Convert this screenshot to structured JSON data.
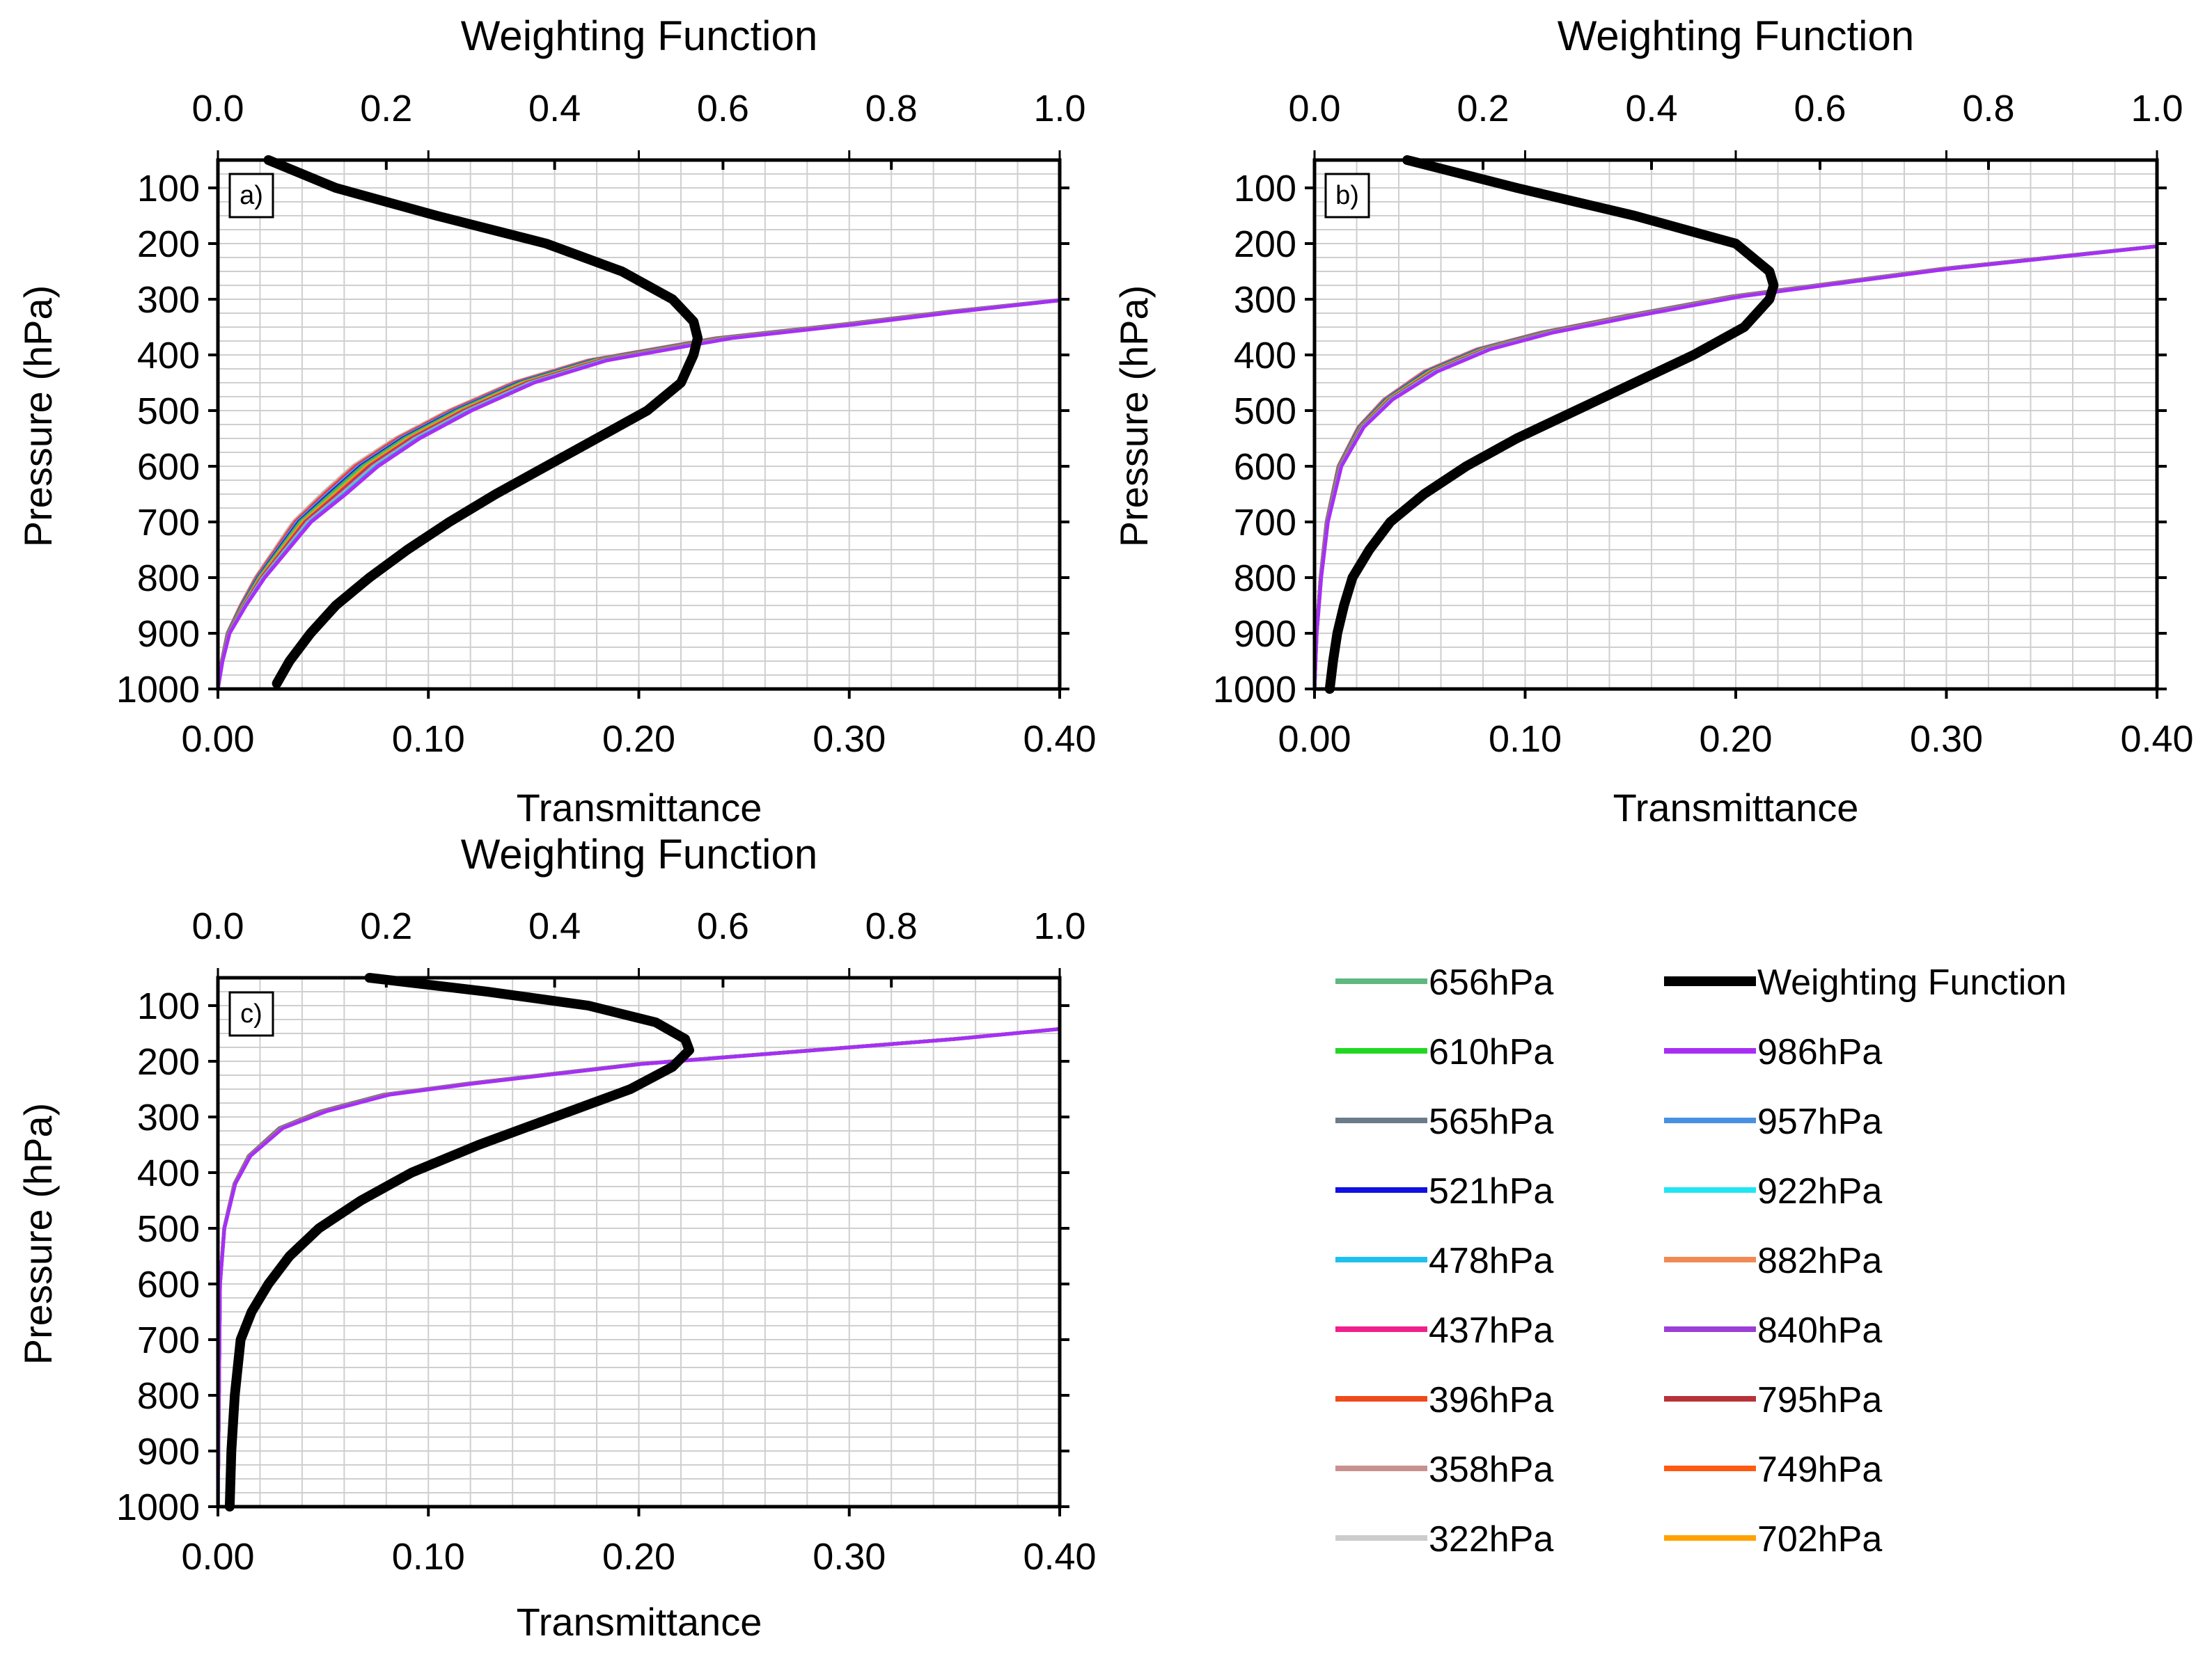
{
  "chart_data": [
    {
      "type": "line",
      "panel_label": "a)",
      "title": "Weighting Function",
      "xlabel": "Transmittance",
      "ylabel": "Pressure (hPa)",
      "xlim": [
        0,
        0.4
      ],
      "x_ticks": [
        "0.00",
        "0.10",
        "0.20",
        "0.30",
        "0.40"
      ],
      "top_xlim": [
        0,
        1.0
      ],
      "top_ticks": [
        "0.0",
        "0.2",
        "0.4",
        "0.6",
        "0.8",
        "1.0"
      ],
      "ylim": [
        50,
        1000
      ],
      "y_ticks": [
        "100",
        "200",
        "300",
        "400",
        "500",
        "600",
        "700",
        "800",
        "900",
        "1000"
      ],
      "grid": true,
      "transmittance_reference": [
        [
          0.0,
          1000
        ],
        [
          0.002,
          950
        ],
        [
          0.005,
          900
        ],
        [
          0.012,
          850
        ],
        [
          0.02,
          800
        ],
        [
          0.03,
          750
        ],
        [
          0.04,
          700
        ],
        [
          0.055,
          650
        ],
        [
          0.07,
          600
        ],
        [
          0.09,
          550
        ],
        [
          0.115,
          500
        ],
        [
          0.145,
          450
        ],
        [
          0.18,
          410
        ],
        [
          0.24,
          370
        ],
        [
          0.3,
          345
        ],
        [
          0.35,
          322
        ],
        [
          0.4,
          302
        ]
      ],
      "transmittance_spread": 0.014,
      "weighting_function": [
        [
          0.06,
          50
        ],
        [
          0.14,
          100
        ],
        [
          0.26,
          150
        ],
        [
          0.39,
          200
        ],
        [
          0.48,
          250
        ],
        [
          0.54,
          300
        ],
        [
          0.565,
          340
        ],
        [
          0.57,
          370
        ],
        [
          0.565,
          400
        ],
        [
          0.55,
          450
        ],
        [
          0.51,
          500
        ],
        [
          0.45,
          550
        ],
        [
          0.39,
          600
        ],
        [
          0.33,
          650
        ],
        [
          0.275,
          700
        ],
        [
          0.225,
          750
        ],
        [
          0.18,
          800
        ],
        [
          0.14,
          850
        ],
        [
          0.11,
          900
        ],
        [
          0.085,
          950
        ],
        [
          0.07,
          990
        ]
      ]
    },
    {
      "type": "line",
      "panel_label": "b)",
      "title": "Weighting Function",
      "xlabel": "Transmittance",
      "ylabel": "Pressure (hPa)",
      "xlim": [
        0,
        0.4
      ],
      "x_ticks": [
        "0.00",
        "0.10",
        "0.20",
        "0.30",
        "0.40"
      ],
      "top_xlim": [
        0,
        1.0
      ],
      "top_ticks": [
        "0.0",
        "0.2",
        "0.4",
        "0.6",
        "0.8",
        "1.0"
      ],
      "ylim": [
        50,
        1000
      ],
      "y_ticks": [
        "100",
        "200",
        "300",
        "400",
        "500",
        "600",
        "700",
        "800",
        "900",
        "1000"
      ],
      "grid": true,
      "transmittance_reference": [
        [
          0.0,
          1000
        ],
        [
          0.001,
          900
        ],
        [
          0.003,
          800
        ],
        [
          0.006,
          700
        ],
        [
          0.012,
          600
        ],
        [
          0.022,
          530
        ],
        [
          0.035,
          480
        ],
        [
          0.055,
          430
        ],
        [
          0.08,
          390
        ],
        [
          0.11,
          360
        ],
        [
          0.15,
          330
        ],
        [
          0.2,
          295
        ],
        [
          0.25,
          270
        ],
        [
          0.3,
          245
        ],
        [
          0.35,
          225
        ],
        [
          0.4,
          205
        ]
      ],
      "transmittance_spread": 0.008,
      "weighting_function": [
        [
          0.11,
          50
        ],
        [
          0.24,
          100
        ],
        [
          0.38,
          150
        ],
        [
          0.5,
          200
        ],
        [
          0.54,
          250
        ],
        [
          0.545,
          275
        ],
        [
          0.54,
          300
        ],
        [
          0.51,
          350
        ],
        [
          0.45,
          400
        ],
        [
          0.38,
          450
        ],
        [
          0.31,
          500
        ],
        [
          0.24,
          550
        ],
        [
          0.18,
          600
        ],
        [
          0.13,
          650
        ],
        [
          0.09,
          700
        ],
        [
          0.065,
          750
        ],
        [
          0.045,
          800
        ],
        [
          0.035,
          850
        ],
        [
          0.027,
          900
        ],
        [
          0.022,
          950
        ],
        [
          0.018,
          1000
        ]
      ]
    },
    {
      "type": "line",
      "panel_label": "c)",
      "title": "Weighting Function",
      "xlabel": "Transmittance",
      "ylabel": "Pressure (hPa)",
      "xlim": [
        0,
        0.4
      ],
      "x_ticks": [
        "0.00",
        "0.10",
        "0.20",
        "0.30",
        "0.40"
      ],
      "top_xlim": [
        0,
        1.0
      ],
      "top_ticks": [
        "0.0",
        "0.2",
        "0.4",
        "0.6",
        "0.8",
        "1.0"
      ],
      "ylim": [
        50,
        1000
      ],
      "y_ticks": [
        "100",
        "200",
        "300",
        "400",
        "500",
        "600",
        "700",
        "800",
        "900",
        "1000"
      ],
      "grid": true,
      "transmittance_reference": [
        [
          0.0,
          1000
        ],
        [
          0.0005,
          800
        ],
        [
          0.001,
          600
        ],
        [
          0.003,
          500
        ],
        [
          0.008,
          420
        ],
        [
          0.015,
          370
        ],
        [
          0.03,
          320
        ],
        [
          0.05,
          290
        ],
        [
          0.08,
          260
        ],
        [
          0.12,
          240
        ],
        [
          0.2,
          205
        ],
        [
          0.25,
          190
        ],
        [
          0.3,
          175
        ],
        [
          0.35,
          160
        ],
        [
          0.4,
          142
        ]
      ],
      "transmittance_spread": 0.004,
      "weighting_function": [
        [
          0.18,
          50
        ],
        [
          0.32,
          75
        ],
        [
          0.44,
          100
        ],
        [
          0.52,
          130
        ],
        [
          0.555,
          160
        ],
        [
          0.56,
          180
        ],
        [
          0.54,
          210
        ],
        [
          0.49,
          250
        ],
        [
          0.4,
          300
        ],
        [
          0.31,
          350
        ],
        [
          0.23,
          400
        ],
        [
          0.17,
          450
        ],
        [
          0.12,
          500
        ],
        [
          0.085,
          550
        ],
        [
          0.06,
          600
        ],
        [
          0.04,
          650
        ],
        [
          0.027,
          700
        ],
        [
          0.02,
          800
        ],
        [
          0.016,
          900
        ],
        [
          0.014,
          1000
        ]
      ]
    }
  ],
  "legend": {
    "columns": [
      [
        {
          "label": "656hPa",
          "color": "#5fb87f"
        },
        {
          "label": "610hPa",
          "color": "#22d722"
        },
        {
          "label": "565hPa",
          "color": "#6a7b8a"
        },
        {
          "label": "521hPa",
          "color": "#1010e0"
        },
        {
          "label": "478hPa",
          "color": "#1ec0ee"
        },
        {
          "label": "437hPa",
          "color": "#f0208e"
        },
        {
          "label": "396hPa",
          "color": "#f04a1a"
        },
        {
          "label": "358hPa",
          "color": "#c99090"
        },
        {
          "label": "322hPa",
          "color": "#cccccc"
        }
      ],
      [
        {
          "label": "Weighting Function",
          "color": "#000000"
        },
        {
          "label": "986hPa",
          "color": "#a82ef5"
        },
        {
          "label": "957hPa",
          "color": "#4a90e2"
        },
        {
          "label": "922hPa",
          "color": "#22e5f2"
        },
        {
          "label": "882hPa",
          "color": "#f08a55"
        },
        {
          "label": "840hPa",
          "color": "#9b3ed6"
        },
        {
          "label": "795hPa",
          "color": "#b8323a"
        },
        {
          "label": "749hPa",
          "color": "#ff5a12"
        },
        {
          "label": "702hPa",
          "color": "#ffa200"
        }
      ]
    ]
  }
}
